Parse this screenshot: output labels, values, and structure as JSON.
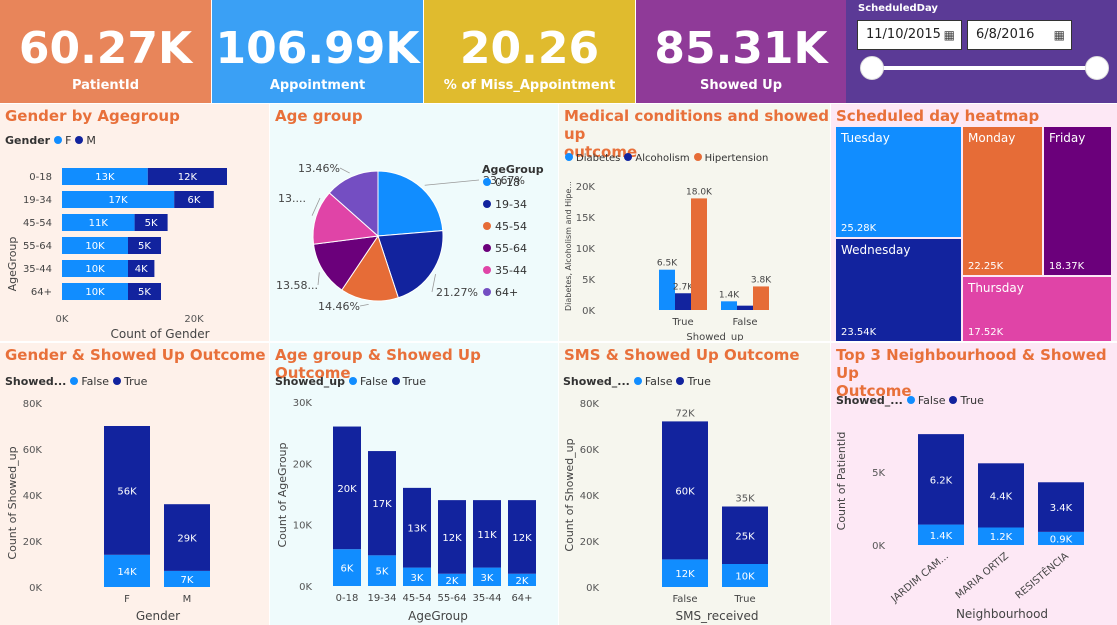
{
  "kpis": [
    {
      "value": "60.27K",
      "label": "PatientId",
      "color": "#e8855a"
    },
    {
      "value": "106.99K",
      "label": "Appointment",
      "color": "#3aa0f5"
    },
    {
      "value": "20.26",
      "label": "% of Miss_Appointment",
      "color": "#e0bb2e"
    },
    {
      "value": "85.31K",
      "label": "Showed Up",
      "color": "#8f3a98"
    }
  ],
  "slicer": {
    "title": "ScheduledDay",
    "start": "11/10/2015",
    "end": "6/8/2016",
    "calendar_icon": "calendar-icon"
  },
  "colors": {
    "female": "#118dff",
    "male": "#12239e",
    "false": "#118dff",
    "true": "#12239e",
    "hypertension": "#e66c37",
    "p1": "#118dff",
    "p2": "#12239e",
    "p3": "#e66c37",
    "p4": "#6b007b",
    "p5": "#e044a7",
    "p6": "#744ec2"
  },
  "gender_age": {
    "title": "Gender by Agegroup",
    "legend_title": "Gender",
    "legend": [
      "F",
      "M"
    ],
    "ylabel": "AgeGroup",
    "xlabel": "Count of Gender",
    "xticks": [
      "0K",
      "20K"
    ],
    "chart_data": {
      "type": "bar",
      "categories": [
        "0-18",
        "19-34",
        "45-54",
        "55-64",
        "35-44",
        "64+"
      ],
      "series": [
        {
          "name": "F",
          "values": [
            13,
            17,
            11,
            10,
            10,
            10
          ],
          "labels": [
            "13K",
            "17K",
            "11K",
            "10K",
            "10K",
            "10K"
          ]
        },
        {
          "name": "M",
          "values": [
            12,
            6,
            5,
            5,
            4,
            5
          ],
          "labels": [
            "12K",
            "6K",
            "5K",
            "5K",
            "4K",
            "5K"
          ]
        }
      ]
    }
  },
  "age_group": {
    "title": "Age group",
    "legend_title": "AgeGroup",
    "legend": [
      "0-18",
      "19-34",
      "45-54",
      "55-64",
      "35-44",
      "64+"
    ],
    "chart_data": {
      "type": "pie",
      "labels": [
        "0-18",
        "19-34",
        "45-54",
        "55-64",
        "35-44",
        "64+"
      ],
      "values": [
        23.67,
        21.27,
        14.46,
        13.58,
        13.56,
        13.46
      ],
      "slice_labels": [
        "23.67%",
        "21.27%",
        "14.46%",
        "13.58...",
        "13....",
        "13.46%"
      ]
    }
  },
  "medical": {
    "title_line1": "Medical conditions and showed up",
    "title_line2": "outcome",
    "legend": [
      "Diabetes",
      "Alcoholism",
      "Hipertension"
    ],
    "ylabel": "Diabetes, Alcoholism and Hipe...",
    "xlabel": "Showed_up",
    "yticks": [
      "0K",
      "5K",
      "10K",
      "15K",
      "20K"
    ],
    "chart_data": {
      "type": "bar",
      "categories": [
        "True",
        "False"
      ],
      "series": [
        {
          "name": "Diabetes",
          "values": [
            6.5,
            1.4
          ],
          "labels": [
            "6.5K",
            "1.4K"
          ]
        },
        {
          "name": "Alcoholism",
          "values": [
            2.7,
            0.7
          ],
          "labels": [
            "2.7K",
            ""
          ]
        },
        {
          "name": "Hipertension",
          "values": [
            18.0,
            3.8
          ],
          "labels": [
            "18.0K",
            "3.8K"
          ]
        }
      ],
      "ylim": [
        0,
        20
      ]
    }
  },
  "heatmap": {
    "title": "Scheduled day heatmap",
    "cells": [
      {
        "name": "Tuesday",
        "value": "25.28K",
        "color": "#118dff"
      },
      {
        "name": "Monday",
        "value": "22.25K",
        "color": "#e66c37"
      },
      {
        "name": "Friday",
        "value": "18.37K",
        "color": "#6b007b"
      },
      {
        "name": "Wednesday",
        "value": "23.54K",
        "color": "#12239e"
      },
      {
        "name": "Thursday",
        "value": "17.52K",
        "color": "#e044a7"
      }
    ]
  },
  "gender_showed": {
    "title": "Gender & Showed Up Outcome",
    "legend_title": "Showed...",
    "legend": [
      "False",
      "True"
    ],
    "ylabel": "Count of Showed_up",
    "xlabel": "Gender",
    "yticks": [
      "0K",
      "20K",
      "40K",
      "60K",
      "80K"
    ],
    "chart_data": {
      "type": "bar",
      "categories": [
        "F",
        "M"
      ],
      "series": [
        {
          "name": "False",
          "values": [
            14,
            7
          ],
          "labels": [
            "14K",
            "7K"
          ]
        },
        {
          "name": "True",
          "values": [
            56,
            29
          ],
          "labels": [
            "56K",
            "29K"
          ]
        }
      ],
      "ylim": [
        0,
        80
      ]
    }
  },
  "age_showed": {
    "title": "Age group & Showed Up Outcome",
    "legend_title": "Showed_up",
    "legend": [
      "False",
      "True"
    ],
    "ylabel": "Count of AgeGroup",
    "xlabel": "AgeGroup",
    "yticks": [
      "0K",
      "10K",
      "20K",
      "30K"
    ],
    "chart_data": {
      "type": "bar",
      "categories": [
        "0-18",
        "19-34",
        "45-54",
        "55-64",
        "35-44",
        "64+"
      ],
      "series": [
        {
          "name": "False",
          "values": [
            6,
            5,
            3,
            2,
            3,
            2
          ],
          "labels": [
            "6K",
            "5K",
            "3K",
            "2K",
            "3K",
            "2K"
          ]
        },
        {
          "name": "True",
          "values": [
            20,
            17,
            13,
            12,
            11,
            12
          ],
          "labels": [
            "20K",
            "17K",
            "13K",
            "12K",
            "11K",
            "12K"
          ]
        }
      ],
      "ylim": [
        0,
        30
      ]
    }
  },
  "sms_showed": {
    "title": "SMS & Showed Up Outcome",
    "legend_title": "Showed_...",
    "legend": [
      "False",
      "True"
    ],
    "ylabel": "Count of Showed_up",
    "xlabel": "SMS_received",
    "yticks": [
      "0K",
      "20K",
      "40K",
      "60K",
      "80K"
    ],
    "chart_data": {
      "type": "bar",
      "categories": [
        "False",
        "True"
      ],
      "totals": [
        "72K",
        "35K"
      ],
      "series": [
        {
          "name": "False",
          "values": [
            12,
            10
          ],
          "labels": [
            "12K",
            "10K"
          ]
        },
        {
          "name": "True",
          "values": [
            60,
            25
          ],
          "labels": [
            "60K",
            "25K"
          ]
        }
      ],
      "ylim": [
        0,
        80
      ]
    }
  },
  "neigh_showed": {
    "title_line1": "Top 3 Neighbourhood & Showed Up",
    "title_line2": "Outcome",
    "legend_title": "Showed_...",
    "legend": [
      "False",
      "True"
    ],
    "ylabel": "Count of PatientId",
    "xlabel": "Neighbourhood",
    "yticks": [
      "0K",
      "5K"
    ],
    "chart_data": {
      "type": "bar",
      "categories": [
        "JARDIM CAM...",
        "MARIA ORTIZ",
        "RESISTÊNCIA"
      ],
      "series": [
        {
          "name": "False",
          "values": [
            1.4,
            1.2,
            0.9
          ],
          "labels": [
            "1.4K",
            "1.2K",
            "0.9K"
          ]
        },
        {
          "name": "True",
          "values": [
            6.2,
            4.4,
            3.4
          ],
          "labels": [
            "6.2K",
            "4.4K",
            "3.4K"
          ]
        }
      ],
      "ylim": [
        0,
        8.5
      ]
    }
  }
}
